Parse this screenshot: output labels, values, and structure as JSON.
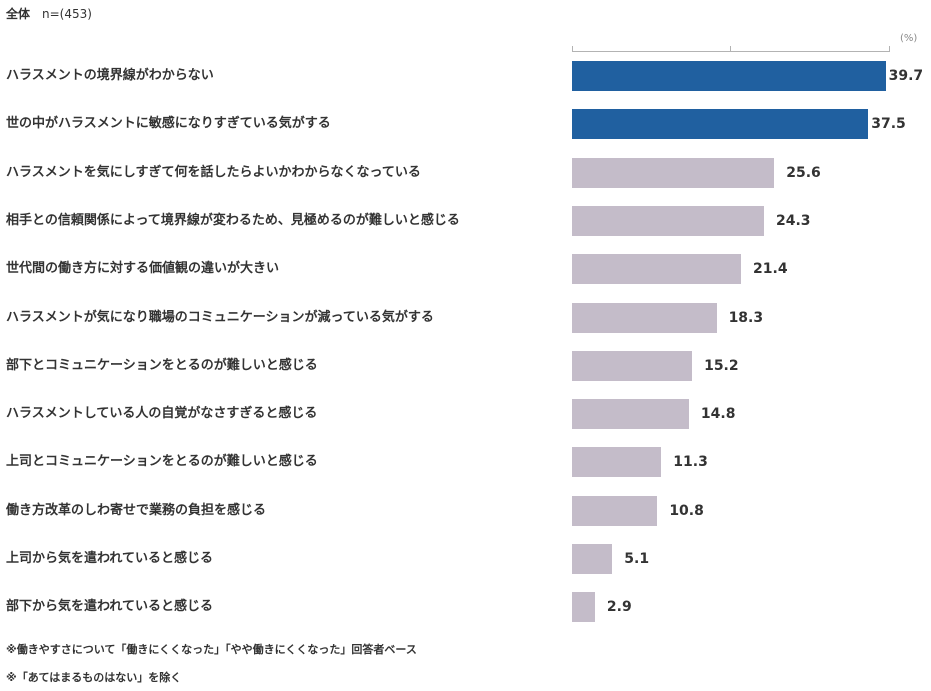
{
  "header": {
    "scope": "全体",
    "n": "n=(453)"
  },
  "colors": {
    "highlight": "#2060a0",
    "normal": "#c4bcc9"
  },
  "chart_data": {
    "type": "bar",
    "orientation": "horizontal",
    "unit": "(%)",
    "xlim": [
      0,
      40
    ],
    "grid": false,
    "categories": [
      "ハラスメントの境界線がわからない",
      "世の中がハラスメントに敏感になりすぎている気がする",
      "ハラスメントを気にしすぎて何を話したらよいかわからなくなっている",
      "相手との信頼関係によって境界線が変わるため、見極めるのが難しいと感じる",
      "世代間の働き方に対する価値観の違いが大きい",
      "ハラスメントが気になり職場のコミュニケーションが減っている気がする",
      "部下とコミュニケーションをとるのが難しいと感じる",
      "ハラスメントしている人の自覚がなさすぎると感じる",
      "上司とコミュニケーションをとるのが難しいと感じる",
      "働き方改革のしわ寄せで業務の負担を感じる",
      "上司から気を遣われていると感じる",
      "部下から気を遣われていると感じる"
    ],
    "values": [
      39.7,
      37.5,
      25.6,
      24.3,
      21.4,
      18.3,
      15.2,
      14.8,
      11.3,
      10.8,
      5.1,
      2.9
    ],
    "value_labels": [
      "39.7",
      "37.5",
      "25.6",
      "24.3",
      "21.4",
      "18.3",
      "15.2",
      "14.8",
      "11.3",
      "10.8",
      "5.1",
      "2.9"
    ],
    "highlighted": [
      true,
      true,
      false,
      false,
      false,
      false,
      false,
      false,
      false,
      false,
      false,
      false
    ]
  },
  "notes": [
    "※働きやすさについて「働きにくくなった」「やや働きにくくなった」回答者ベース",
    "※「あてはまるものはない」を除く"
  ]
}
